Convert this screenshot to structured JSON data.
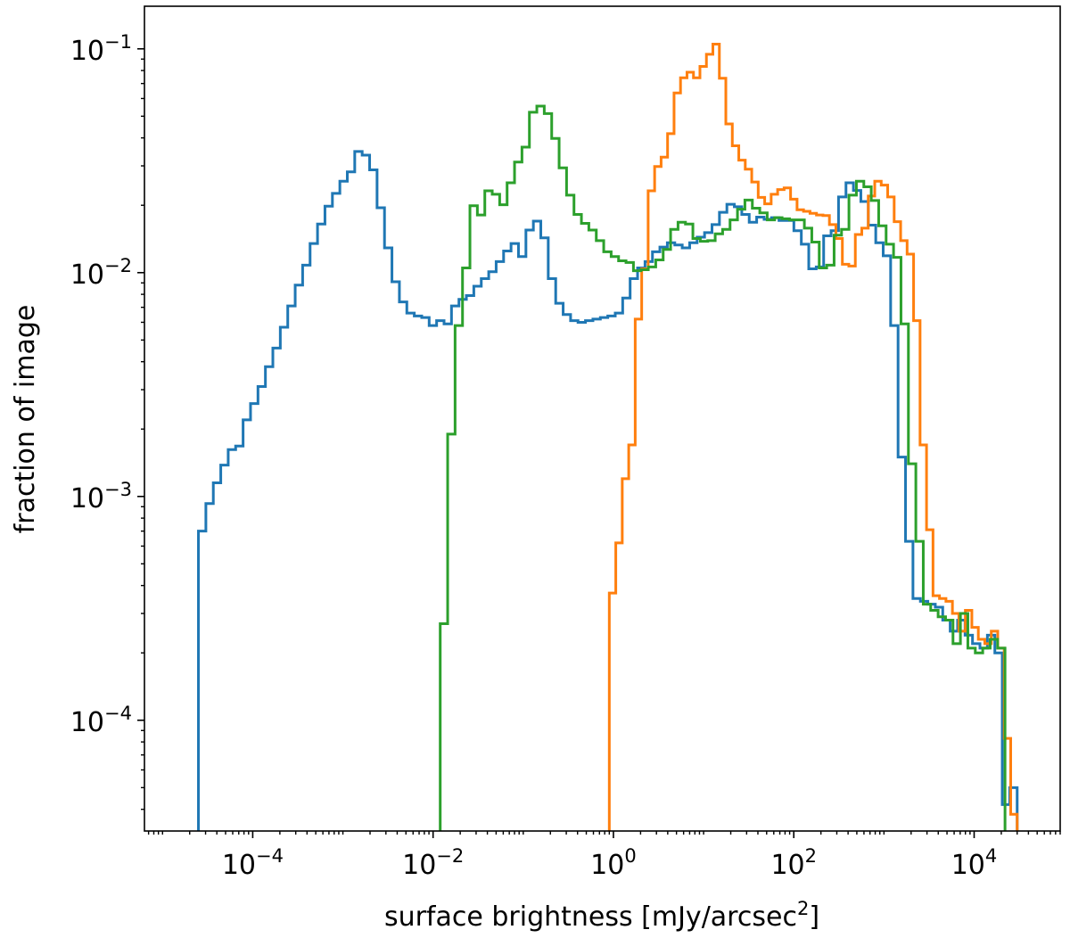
{
  "chart_data": {
    "type": "histogram-step",
    "xscale": "log",
    "yscale": "log",
    "xlabel_main": "surface brightness [mJy/arcsec",
    "xlabel_sup": "2",
    "xlabel_close": "]",
    "ylabel": "fraction of image",
    "xlim": [
      6.3e-06,
      90000
    ],
    "ylim": [
      3.2e-05,
      0.155
    ],
    "x_ticks": [
      {
        "value": 0.0001,
        "base": "10",
        "exp": "−4"
      },
      {
        "value": 0.01,
        "base": "10",
        "exp": "−2"
      },
      {
        "value": 1,
        "base": "10",
        "exp": "0"
      },
      {
        "value": 100,
        "base": "10",
        "exp": "2"
      },
      {
        "value": 10000,
        "base": "10",
        "exp": "4"
      }
    ],
    "y_ticks": [
      {
        "value": 0.0001,
        "base": "10",
        "exp": "−4"
      },
      {
        "value": 0.001,
        "base": "10",
        "exp": "−3"
      },
      {
        "value": 0.01,
        "base": "10",
        "exp": "−2"
      },
      {
        "value": 0.1,
        "base": "10",
        "exp": "−1"
      }
    ],
    "series": [
      {
        "name": "blue",
        "color": "#1f77b4",
        "x_start": 2.5e-05,
        "x_end": 30000,
        "values": [
          0.0007,
          0.00093,
          0.00115,
          0.00138,
          0.00162,
          0.00168,
          0.0022,
          0.0026,
          0.0031,
          0.0038,
          0.0046,
          0.0057,
          0.0071,
          0.0088,
          0.0108,
          0.0135,
          0.0165,
          0.0198,
          0.0226,
          0.0256,
          0.0282,
          0.0348,
          0.0335,
          0.0288,
          0.0195,
          0.0129,
          0.0091,
          0.0074,
          0.0066,
          0.0064,
          0.0063,
          0.0058,
          0.0061,
          0.0059,
          0.0071,
          0.0076,
          0.0079,
          0.0087,
          0.0094,
          0.0101,
          0.0112,
          0.0125,
          0.0135,
          0.0118,
          0.0155,
          0.017,
          0.0143,
          0.0094,
          0.0073,
          0.0065,
          0.0061,
          0.006,
          0.0061,
          0.0062,
          0.0063,
          0.0064,
          0.0066,
          0.0077,
          0.0094,
          0.0105,
          0.0112,
          0.0124,
          0.013,
          0.0136,
          0.0133,
          0.0129,
          0.0136,
          0.0144,
          0.0151,
          0.0164,
          0.0186,
          0.0202,
          0.0197,
          0.0182,
          0.0168,
          0.0177,
          0.0173,
          0.0176,
          0.0171,
          0.0171,
          0.0154,
          0.0134,
          0.0104,
          0.0106,
          0.0146,
          0.0154,
          0.0218,
          0.0252,
          0.0233,
          0.0208,
          0.0163,
          0.0136,
          0.0119,
          0.0058,
          0.0015,
          0.00063,
          0.00035,
          0.00034,
          0.00033,
          0.00032,
          0.00028,
          0.00025,
          0.00028,
          0.00024,
          0.00022,
          0.00021,
          0.00024,
          0.0002,
          4.2e-05,
          5e-05
        ]
      },
      {
        "name": "orange",
        "color": "#ff7f0e",
        "x_start": 0.9,
        "x_end": 30000,
        "values": [
          0.00037,
          0.00062,
          0.0012,
          0.0017,
          0.0062,
          0.0104,
          0.0232,
          0.0298,
          0.0328,
          0.0418,
          0.0635,
          0.0742,
          0.0786,
          0.0742,
          0.0834,
          0.0946,
          0.105,
          0.0739,
          0.0462,
          0.0369,
          0.0318,
          0.029,
          0.0254,
          0.0217,
          0.0203,
          0.0224,
          0.0235,
          0.0239,
          0.0213,
          0.0191,
          0.0188,
          0.0184,
          0.0181,
          0.018,
          0.0164,
          0.0142,
          0.0109,
          0.0107,
          0.0148,
          0.0158,
          0.022,
          0.0256,
          0.0246,
          0.0218,
          0.0169,
          0.0139,
          0.0121,
          0.0061,
          0.0017,
          0.00071,
          0.00036,
          0.00035,
          0.00034,
          0.0003,
          0.00025,
          0.00031,
          0.00026,
          0.00023,
          0.00022,
          0.00025,
          0.00021,
          8.3e-05,
          3.8e-05
        ]
      },
      {
        "name": "green",
        "color": "#2ca02c",
        "x_start": 0.012,
        "x_end": 22000,
        "values": [
          0.00027,
          0.0019,
          0.0058,
          0.0105,
          0.0199,
          0.0181,
          0.0232,
          0.0224,
          0.0201,
          0.0252,
          0.0312,
          0.0364,
          0.0521,
          0.0555,
          0.0514,
          0.0398,
          0.0294,
          0.0222,
          0.0182,
          0.0166,
          0.0155,
          0.0139,
          0.0124,
          0.0118,
          0.0113,
          0.0111,
          0.0102,
          0.0103,
          0.0106,
          0.0114,
          0.0127,
          0.0156,
          0.0168,
          0.0165,
          0.0142,
          0.0138,
          0.0139,
          0.0149,
          0.0156,
          0.0172,
          0.0192,
          0.0211,
          0.0194,
          0.0185,
          0.0172,
          0.0176,
          0.0174,
          0.0172,
          0.0172,
          0.0158,
          0.0137,
          0.0105,
          0.0108,
          0.0147,
          0.0156,
          0.0222,
          0.0256,
          0.0242,
          0.021,
          0.0162,
          0.0134,
          0.0117,
          0.0059,
          0.0014,
          0.00063,
          0.00033,
          0.00031,
          0.00029,
          0.00028,
          0.00022,
          0.0003,
          0.00021,
          0.0002,
          0.00021,
          0.00023,
          0.00021
        ]
      }
    ]
  }
}
